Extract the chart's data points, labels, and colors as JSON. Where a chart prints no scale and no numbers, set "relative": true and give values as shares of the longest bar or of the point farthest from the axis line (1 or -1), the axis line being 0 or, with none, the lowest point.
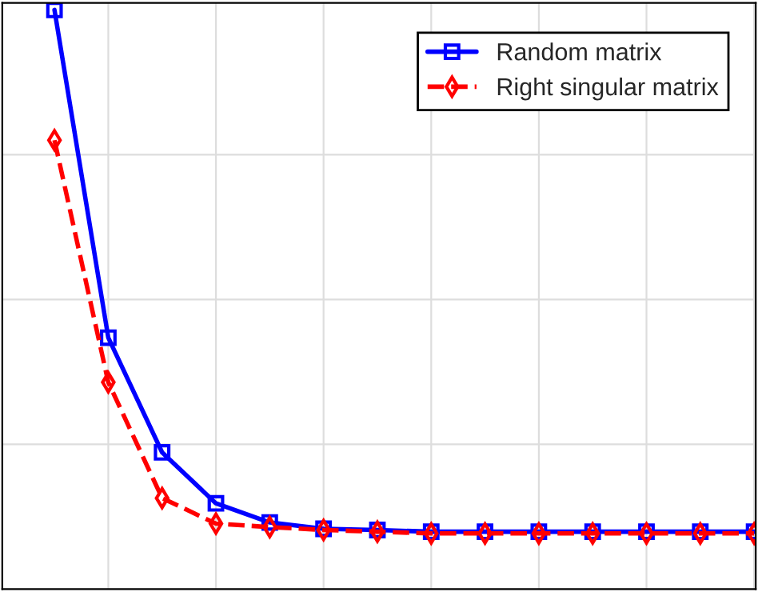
{
  "chart_data": {
    "type": "line",
    "relative": true,
    "categories": [
      null,
      null,
      null,
      null,
      null,
      null,
      null,
      null,
      null,
      null,
      null,
      null,
      null,
      null
    ],
    "series": [
      {
        "name": "Random matrix",
        "color": "#0000ff",
        "marker": "square",
        "line_style": "solid",
        "values": [
          1,
          0.434,
          0.236,
          0.148,
          0.115,
          0.104,
          0.102,
          0.099,
          0.099,
          0.099,
          0.099,
          0.099,
          0.099,
          0.099
        ]
      },
      {
        "name": "Right singular matrix",
        "color": "#ff0000",
        "marker": "diamond",
        "line_style": "dashed",
        "values": [
          0.775,
          0.357,
          0.157,
          0.113,
          0.107,
          0.102,
          0.099,
          0.096,
          0.096,
          0.096,
          0.096,
          0.096,
          0.096,
          0.096
        ]
      }
    ],
    "grid": true,
    "legend": "top right"
  }
}
